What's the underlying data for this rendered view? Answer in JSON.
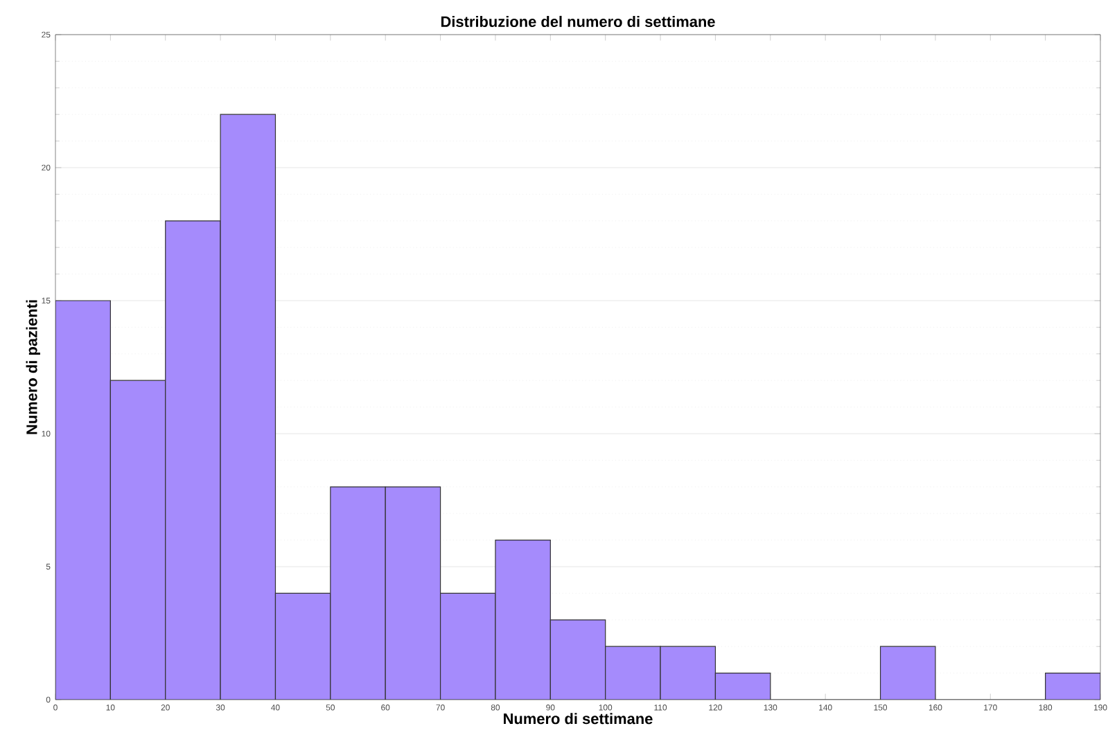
{
  "chart_data": {
    "type": "histogram",
    "title": "Distribuzione del numero di settimane",
    "xlabel": "Numero di settimane",
    "ylabel": "Numero di pazienti",
    "bins": [
      0,
      10,
      20,
      30,
      40,
      50,
      60,
      70,
      80,
      90,
      100,
      110,
      120,
      130,
      140,
      150,
      160,
      170,
      180,
      190
    ],
    "values": [
      15,
      12,
      18,
      22,
      4,
      8,
      8,
      4,
      6,
      3,
      2,
      2,
      1,
      0,
      0,
      2,
      0,
      0,
      1
    ],
    "color": "#a58bfc",
    "xlim": [
      0,
      190
    ],
    "xticks": [
      0,
      10,
      20,
      30,
      40,
      50,
      60,
      70,
      80,
      90,
      100,
      110,
      120,
      130,
      140,
      150,
      160,
      170,
      180,
      190
    ],
    "ylim": [
      0,
      25
    ],
    "yticks": [
      0,
      5,
      10,
      15,
      20,
      25
    ],
    "grid": "y"
  }
}
